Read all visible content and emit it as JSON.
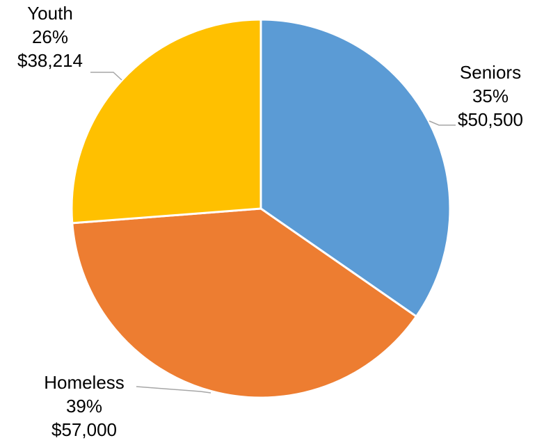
{
  "chart_data": {
    "type": "pie",
    "title": "",
    "slices": [
      {
        "name": "Seniors",
        "percent_label": "35%",
        "value_label": "$50,500",
        "value": 50500,
        "color": "#5b9bd5"
      },
      {
        "name": "Homeless",
        "percent_label": "39%",
        "value_label": "$57,000",
        "value": 57000,
        "color": "#ed7d31"
      },
      {
        "name": "Youth",
        "percent_label": "26%",
        "value_label": "$38,214",
        "value": 38214,
        "color": "#ffc000"
      }
    ],
    "start_angle": "12 o'clock",
    "direction": "clockwise",
    "legend": "none"
  }
}
